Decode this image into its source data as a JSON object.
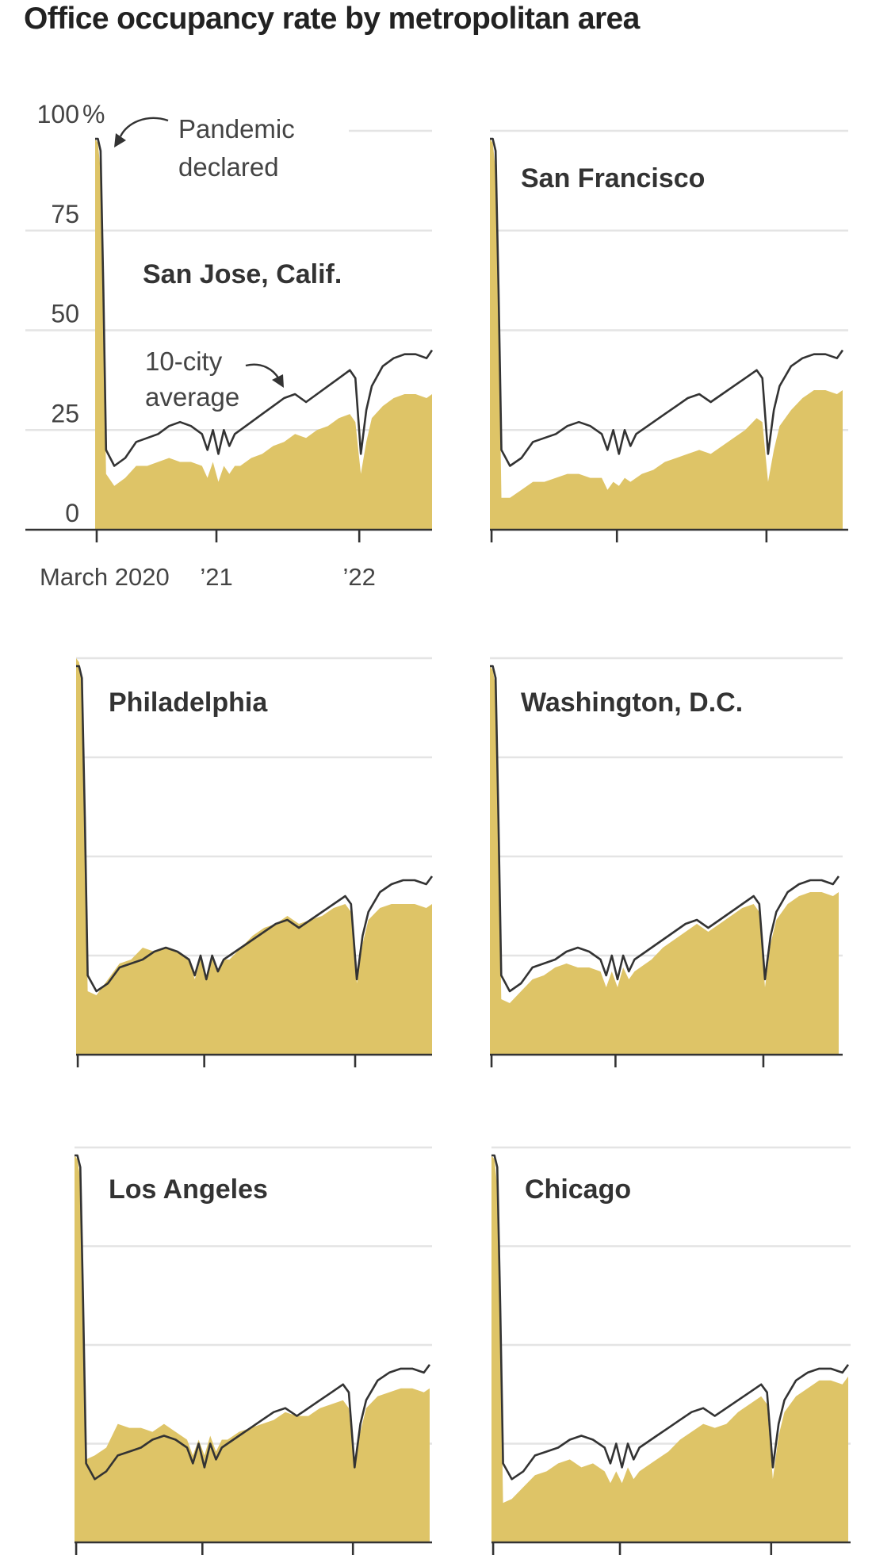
{
  "title": "Office occupancy rate by metropolitan area",
  "colors": {
    "metro_fill": "#dec467",
    "average_line": "#333333",
    "grid": "#e4e4e4",
    "axis": "#333333"
  },
  "chart_data": {
    "type": "area",
    "layout": "small multiples, 2 columns x 3 rows",
    "y_unit": "%",
    "ylim": [
      0,
      100
    ],
    "y_ticks": [
      {
        "value": 0,
        "label": "0"
      },
      {
        "value": 25,
        "label": "25"
      },
      {
        "value": 50,
        "label": "50"
      },
      {
        "value": 75,
        "label": "75"
      },
      {
        "value": 100,
        "label": "100"
      }
    ],
    "y_unit_label": "%",
    "x_ticks": [
      {
        "value": "2020-03",
        "label": "March 2020"
      },
      {
        "value": "2021-01",
        "label": "’21"
      },
      {
        "value": "2022-01",
        "label": "’22"
      }
    ],
    "x": [
      "2020-02-26",
      "2020-03-04",
      "2020-03-11",
      "2020-03-18",
      "2020-03-25",
      "2020-04-15",
      "2020-05-13",
      "2020-06-10",
      "2020-07-08",
      "2020-08-05",
      "2020-09-02",
      "2020-09-30",
      "2020-10-28",
      "2020-11-25",
      "2020-12-09",
      "2020-12-23",
      "2021-01-06",
      "2021-01-20",
      "2021-02-03",
      "2021-02-17",
      "2021-03-03",
      "2021-03-31",
      "2021-04-28",
      "2021-05-26",
      "2021-06-23",
      "2021-07-21",
      "2021-08-18",
      "2021-09-15",
      "2021-10-13",
      "2021-11-10",
      "2021-12-08",
      "2021-12-22",
      "2022-01-05",
      "2022-01-19",
      "2022-02-02",
      "2022-03-02",
      "2022-03-30",
      "2022-04-27",
      "2022-05-25",
      "2022-06-22",
      "2022-07-06"
    ],
    "average_series": {
      "label": "10-city average",
      "values": [
        98,
        98,
        95,
        60,
        20,
        16,
        18,
        22,
        23,
        24,
        26,
        27,
        26,
        24,
        20,
        25,
        19,
        25,
        21,
        24,
        25,
        27,
        29,
        31,
        33,
        34,
        32,
        34,
        36,
        38,
        40,
        38,
        19,
        30,
        36,
        41,
        43,
        44,
        44,
        43,
        45
      ]
    },
    "panels": [
      {
        "city": "San Jose, Calif.",
        "values": [
          98,
          97,
          90,
          55,
          14,
          11,
          13,
          16,
          16,
          17,
          18,
          17,
          17,
          16,
          13,
          17,
          12,
          16,
          14,
          16,
          16,
          18,
          19,
          21,
          22,
          24,
          23,
          25,
          26,
          28,
          29,
          27,
          14,
          22,
          28,
          31,
          33,
          34,
          34,
          33,
          34
        ]
      },
      {
        "city": "San Francisco",
        "values": [
          98,
          97,
          90,
          55,
          8,
          8,
          10,
          12,
          12,
          13,
          14,
          14,
          13,
          13,
          10,
          12,
          11,
          13,
          12,
          13,
          14,
          15,
          17,
          18,
          19,
          20,
          19,
          21,
          23,
          25,
          28,
          27,
          12,
          20,
          26,
          30,
          33,
          35,
          35,
          34,
          35
        ]
      },
      {
        "city": "Philadelphia",
        "values": [
          100,
          99,
          95,
          60,
          16,
          15,
          19,
          23,
          24,
          27,
          26,
          27,
          26,
          24,
          19,
          24,
          20,
          25,
          21,
          24,
          24,
          27,
          30,
          32,
          33,
          35,
          33,
          34,
          35,
          37,
          38,
          36,
          18,
          28,
          34,
          37,
          38,
          38,
          38,
          37,
          38
        ]
      },
      {
        "city": "Washington, D.C.",
        "values": [
          98,
          97,
          93,
          58,
          14,
          13,
          16,
          19,
          20,
          22,
          23,
          22,
          22,
          21,
          17,
          21,
          17,
          22,
          19,
          21,
          22,
          24,
          27,
          29,
          31,
          33,
          31,
          33,
          35,
          37,
          38,
          36,
          17,
          28,
          34,
          38,
          40,
          41,
          41,
          40,
          41
        ]
      },
      {
        "city": "Los Angeles",
        "values": [
          98,
          97,
          92,
          58,
          21,
          22,
          24,
          30,
          29,
          29,
          28,
          30,
          28,
          26,
          22,
          26,
          22,
          27,
          23,
          26,
          26,
          28,
          29,
          30,
          31,
          33,
          32,
          32,
          34,
          35,
          36,
          34,
          19,
          28,
          34,
          37,
          38,
          39,
          39,
          38,
          39
        ]
      },
      {
        "city": "Chicago",
        "values": [
          98,
          97,
          90,
          55,
          10,
          11,
          14,
          17,
          18,
          20,
          21,
          19,
          20,
          18,
          15,
          18,
          15,
          19,
          16,
          18,
          19,
          21,
          23,
          26,
          28,
          30,
          29,
          30,
          33,
          35,
          37,
          35,
          16,
          27,
          33,
          37,
          39,
          41,
          41,
          40,
          42
        ]
      }
    ],
    "annotations": [
      {
        "panel": 0,
        "line1": "Pandemic",
        "line2": "declared"
      },
      {
        "panel": 0,
        "line1": "10-city",
        "line2": "average"
      }
    ],
    "grid": true
  }
}
